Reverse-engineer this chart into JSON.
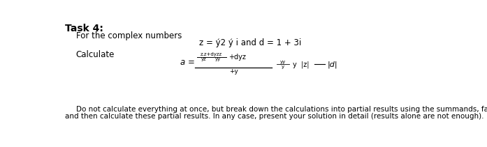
{
  "title": "Task 4:",
  "subtitle": "For the complex numbers",
  "definition_line": "z = ý2 ý i and d = 1 + 3i",
  "calculate_label": "Calculate",
  "footer_line1": "Do not calculate everything at once, but break down the calculations into partial results using the summands, factors and fractions",
  "footer_line2": "and then calculate these partial results. In any case, present your solution in detail (results alone are not enough).",
  "bg_color": "#ffffff",
  "text_color": "#000000",
  "title_fontsize": 10,
  "body_fontsize": 8.5,
  "formula_fontsize": 7.0,
  "small_fontsize": 5.0,
  "footer_fontsize": 7.5
}
